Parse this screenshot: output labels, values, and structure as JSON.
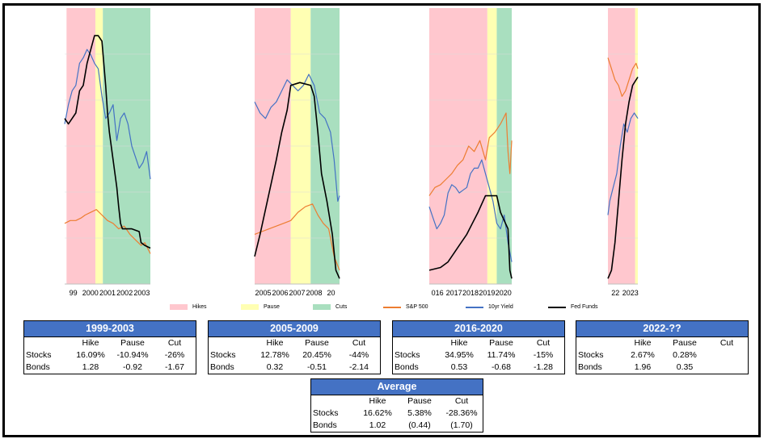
{
  "colors": {
    "hikes": "#FFC7CE",
    "pause": "#FFFFB3",
    "cuts": "#A9DFBF",
    "sp500": "#ED7D31",
    "yield": "#4472C4",
    "fedfunds": "#000000",
    "table_header": "#4472C4"
  },
  "chart_data": [
    {
      "type": "line",
      "x_ticks": [
        "99",
        "2000",
        "2001",
        "2002",
        "2003"
      ],
      "x_range": [
        1998.9,
        2003.5
      ],
      "shading": [
        {
          "regime": "Hikes",
          "start": 1999.0,
          "end": 2000.55
        },
        {
          "regime": "Pause",
          "start": 2000.55,
          "end": 2000.95
        },
        {
          "regime": "Cuts",
          "start": 2000.95,
          "end": 2003.5
        }
      ],
      "series": [
        {
          "name": "S&P 500",
          "key": "sp500",
          "x": [
            1998.9,
            1999.2,
            1999.5,
            1999.8,
            2000.0,
            2000.3,
            2000.6,
            2000.9,
            2001.2,
            2001.5,
            2001.8,
            2002.1,
            2002.4,
            2002.7,
            2003.0,
            2003.2,
            2003.5
          ],
          "y": [
            0.22,
            0.23,
            0.23,
            0.24,
            0.25,
            0.26,
            0.27,
            0.25,
            0.23,
            0.22,
            0.2,
            0.21,
            0.18,
            0.16,
            0.14,
            0.15,
            0.11
          ]
        },
        {
          "name": "10yr Yield",
          "key": "yield",
          "x": [
            1998.9,
            1999.1,
            1999.3,
            1999.5,
            1999.7,
            1999.9,
            2000.1,
            2000.3,
            2000.5,
            2000.7,
            2000.9,
            2001.1,
            2001.3,
            2001.5,
            2001.7,
            2001.9,
            2002.1,
            2002.3,
            2002.5,
            2002.7,
            2002.9,
            2003.1,
            2003.3,
            2003.5
          ],
          "y": [
            0.58,
            0.65,
            0.7,
            0.72,
            0.8,
            0.82,
            0.85,
            0.83,
            0.8,
            0.78,
            0.68,
            0.6,
            0.62,
            0.65,
            0.52,
            0.6,
            0.62,
            0.58,
            0.5,
            0.46,
            0.42,
            0.44,
            0.48,
            0.38
          ]
        },
        {
          "name": "Fed Funds",
          "key": "fedfunds",
          "x": [
            1998.9,
            1999.1,
            1999.3,
            1999.5,
            1999.7,
            1999.9,
            2000.1,
            2000.3,
            2000.5,
            2000.7,
            2000.9,
            2001.0,
            2001.1,
            2001.2,
            2001.3,
            2001.5,
            2001.7,
            2001.8,
            2001.9,
            2002.0,
            2002.5,
            2002.9,
            2003.0,
            2003.2,
            2003.5
          ],
          "y": [
            0.6,
            0.58,
            0.6,
            0.62,
            0.7,
            0.72,
            0.8,
            0.85,
            0.9,
            0.9,
            0.88,
            0.8,
            0.72,
            0.62,
            0.55,
            0.45,
            0.35,
            0.28,
            0.22,
            0.2,
            0.2,
            0.19,
            0.15,
            0.14,
            0.13
          ]
        }
      ]
    },
    {
      "type": "line",
      "x_ticks": [
        "2005",
        "2006",
        "2007",
        "2008",
        "20"
      ],
      "x_range": [
        2004.5,
        2009.2
      ],
      "shading": [
        {
          "regime": "Hikes",
          "start": 2004.5,
          "end": 2006.5
        },
        {
          "regime": "Pause",
          "start": 2006.5,
          "end": 2007.6
        },
        {
          "regime": "Cuts",
          "start": 2007.6,
          "end": 2009.2
        }
      ],
      "series": [
        {
          "name": "S&P 500",
          "key": "sp500",
          "x": [
            2004.5,
            2004.9,
            2005.3,
            2005.7,
            2006.1,
            2006.5,
            2006.9,
            2007.3,
            2007.7,
            2008.0,
            2008.3,
            2008.6,
            2008.9,
            2009.2
          ],
          "y": [
            0.18,
            0.19,
            0.2,
            0.21,
            0.22,
            0.23,
            0.26,
            0.28,
            0.29,
            0.25,
            0.22,
            0.2,
            0.1,
            0.05
          ]
        },
        {
          "name": "10yr Yield",
          "key": "yield",
          "x": [
            2004.5,
            2004.8,
            2005.1,
            2005.4,
            2005.7,
            2006.0,
            2006.3,
            2006.6,
            2006.9,
            2007.2,
            2007.5,
            2007.8,
            2008.1,
            2008.4,
            2008.7,
            2008.9,
            2009.1,
            2009.2
          ],
          "y": [
            0.66,
            0.62,
            0.6,
            0.64,
            0.66,
            0.7,
            0.74,
            0.72,
            0.7,
            0.72,
            0.76,
            0.72,
            0.62,
            0.6,
            0.55,
            0.45,
            0.3,
            0.32
          ]
        },
        {
          "name": "Fed Funds",
          "key": "fedfunds",
          "x": [
            2004.5,
            2004.8,
            2005.1,
            2005.4,
            2005.7,
            2006.0,
            2006.3,
            2006.5,
            2007.0,
            2007.6,
            2007.8,
            2008.0,
            2008.2,
            2008.5,
            2008.8,
            2009.0,
            2009.2
          ],
          "y": [
            0.1,
            0.18,
            0.27,
            0.36,
            0.45,
            0.55,
            0.63,
            0.72,
            0.73,
            0.72,
            0.68,
            0.55,
            0.4,
            0.3,
            0.18,
            0.05,
            0.02
          ]
        }
      ]
    },
    {
      "type": "line",
      "x_ticks": [
        "016",
        "2017",
        "2018",
        "2019",
        "2020"
      ],
      "x_range": [
        2015.9,
        2020.3
      ],
      "shading": [
        {
          "regime": "Hikes",
          "start": 2015.9,
          "end": 2019.0
        },
        {
          "regime": "Pause",
          "start": 2019.0,
          "end": 2019.5
        },
        {
          "regime": "Cuts",
          "start": 2019.5,
          "end": 2020.3
        }
      ],
      "series": [
        {
          "name": "S&P 500",
          "key": "sp500",
          "x": [
            2015.9,
            2016.2,
            2016.5,
            2016.8,
            2017.1,
            2017.4,
            2017.7,
            2018.0,
            2018.3,
            2018.6,
            2018.9,
            2019.1,
            2019.4,
            2019.7,
            2020.0,
            2020.1,
            2020.2,
            2020.3
          ],
          "y": [
            0.32,
            0.35,
            0.36,
            0.38,
            0.4,
            0.43,
            0.45,
            0.5,
            0.48,
            0.52,
            0.45,
            0.53,
            0.55,
            0.58,
            0.62,
            0.48,
            0.4,
            0.52
          ]
        },
        {
          "name": "10yr Yield",
          "key": "yield",
          "x": [
            2015.9,
            2016.1,
            2016.3,
            2016.5,
            2016.7,
            2016.9,
            2017.1,
            2017.3,
            2017.5,
            2017.7,
            2017.9,
            2018.1,
            2018.3,
            2018.5,
            2018.7,
            2018.9,
            2019.1,
            2019.3,
            2019.5,
            2019.7,
            2019.9,
            2020.1,
            2020.3
          ],
          "y": [
            0.28,
            0.24,
            0.2,
            0.22,
            0.25,
            0.33,
            0.36,
            0.35,
            0.33,
            0.34,
            0.35,
            0.4,
            0.42,
            0.42,
            0.45,
            0.4,
            0.35,
            0.3,
            0.22,
            0.2,
            0.25,
            0.15,
            0.08
          ]
        },
        {
          "name": "Fed Funds",
          "key": "fedfunds",
          "x": [
            2015.9,
            2016.5,
            2016.9,
            2017.2,
            2017.5,
            2017.9,
            2018.2,
            2018.5,
            2018.7,
            2018.9,
            2019.5,
            2019.6,
            2019.7,
            2019.9,
            2020.1,
            2020.2,
            2020.3
          ],
          "y": [
            0.05,
            0.06,
            0.08,
            0.11,
            0.14,
            0.18,
            0.22,
            0.26,
            0.29,
            0.32,
            0.32,
            0.29,
            0.26,
            0.23,
            0.2,
            0.05,
            0.02
          ]
        }
      ]
    },
    {
      "type": "line",
      "x_ticks": [
        "22",
        "2023"
      ],
      "x_range": [
        2021.9,
        2023.6
      ],
      "shading": [
        {
          "regime": "Hikes",
          "start": 2021.9,
          "end": 2023.45
        },
        {
          "regime": "Pause",
          "start": 2023.45,
          "end": 2023.6
        }
      ],
      "series": [
        {
          "name": "S&P 500",
          "key": "sp500",
          "x": [
            2021.9,
            2022.1,
            2022.3,
            2022.5,
            2022.7,
            2022.9,
            2023.1,
            2023.3,
            2023.5,
            2023.6
          ],
          "y": [
            0.82,
            0.78,
            0.74,
            0.72,
            0.68,
            0.7,
            0.74,
            0.78,
            0.8,
            0.78
          ]
        },
        {
          "name": "10yr Yield",
          "key": "yield",
          "x": [
            2021.9,
            2022.0,
            2022.2,
            2022.4,
            2022.6,
            2022.8,
            2023.0,
            2023.2,
            2023.4,
            2023.6
          ],
          "y": [
            0.25,
            0.3,
            0.35,
            0.4,
            0.5,
            0.58,
            0.55,
            0.6,
            0.62,
            0.6
          ]
        },
        {
          "name": "Fed Funds",
          "key": "fedfunds",
          "x": [
            2021.9,
            2022.1,
            2022.3,
            2022.5,
            2022.7,
            2022.9,
            2023.1,
            2023.3,
            2023.6
          ],
          "y": [
            0.02,
            0.05,
            0.15,
            0.3,
            0.45,
            0.58,
            0.66,
            0.72,
            0.75
          ]
        }
      ]
    }
  ],
  "legend": [
    {
      "label": "Hikes",
      "kind": "swatch",
      "key": "hikes"
    },
    {
      "label": "Pause",
      "kind": "swatch",
      "key": "pause"
    },
    {
      "label": "Cuts",
      "kind": "swatch",
      "key": "cuts"
    },
    {
      "label": "S&P 500",
      "kind": "line",
      "key": "sp500"
    },
    {
      "label": "10yr Yield",
      "kind": "line",
      "key": "yield"
    },
    {
      "label": "Fed Funds",
      "kind": "line",
      "key": "fedfunds"
    }
  ],
  "tables": [
    {
      "title": "1999-2003",
      "headers": [
        "",
        "Hike",
        "Pause",
        "Cut"
      ],
      "rows": [
        [
          "Stocks",
          "16.09%",
          "-10.94%",
          "-26%"
        ],
        [
          "Bonds",
          "1.28",
          "-0.92",
          "-1.67"
        ]
      ]
    },
    {
      "title": "2005-2009",
      "headers": [
        "",
        "Hike",
        "Pause",
        "Cut"
      ],
      "rows": [
        [
          "Stocks",
          "12.78%",
          "20.45%",
          "-44%"
        ],
        [
          "Bonds",
          "0.32",
          "-0.51",
          "-2.14"
        ]
      ]
    },
    {
      "title": "2016-2020",
      "headers": [
        "",
        "Hike",
        "Pause",
        "Cut"
      ],
      "rows": [
        [
          "Stocks",
          "34.95%",
          "11.74%",
          "-15%"
        ],
        [
          "Bonds",
          "0.53",
          "-0.68",
          "-1.28"
        ]
      ]
    },
    {
      "title": "2022-??",
      "headers": [
        "",
        "Hike",
        "Pause",
        "Cut"
      ],
      "rows": [
        [
          "Stocks",
          "2.67%",
          "0.28%",
          ""
        ],
        [
          "Bonds",
          "1.96",
          "0.35",
          ""
        ]
      ]
    },
    {
      "title": "Average",
      "headers": [
        "",
        "Hike",
        "Pause",
        "Cut"
      ],
      "rows": [
        [
          "Stocks",
          "16.62%",
          "5.38%",
          "-28.36%"
        ],
        [
          "Bonds",
          "1.02",
          "(0.44)",
          "(1.70)"
        ]
      ]
    }
  ]
}
